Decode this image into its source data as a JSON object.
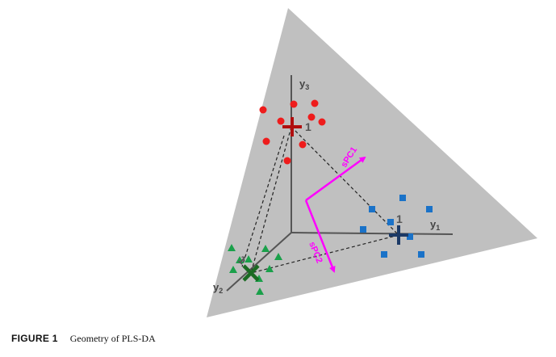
{
  "figure": {
    "axes": [
      {
        "id": "y1",
        "letter": "y",
        "sub": "1"
      },
      {
        "id": "y2",
        "letter": "y",
        "sub": "2"
      },
      {
        "id": "y3",
        "letter": "y",
        "sub": "3"
      }
    ],
    "centroids": [
      {
        "group": "red",
        "label": "1"
      },
      {
        "group": "blue",
        "label": "1"
      },
      {
        "group": "green",
        "label": "1"
      }
    ],
    "components": {
      "pc1": "sPC1",
      "pc2": "sPC2"
    },
    "colors": {
      "plane": "#c0c0c0",
      "axis": "#555555",
      "red_group": "#ee1c1c",
      "red_centroid": "#b00e0e",
      "blue_group": "#1a72c8",
      "blue_centroid": "#1c3a66",
      "green_group": "#1aa04a",
      "green_centroid": "#1a6a22",
      "components": "#ff00ff"
    },
    "markers": {
      "red_group": "circle",
      "blue_group": "square",
      "green_group": "triangle"
    }
  },
  "caption": {
    "label": "FIGURE 1",
    "text": "Geometry of PLS-DA"
  }
}
